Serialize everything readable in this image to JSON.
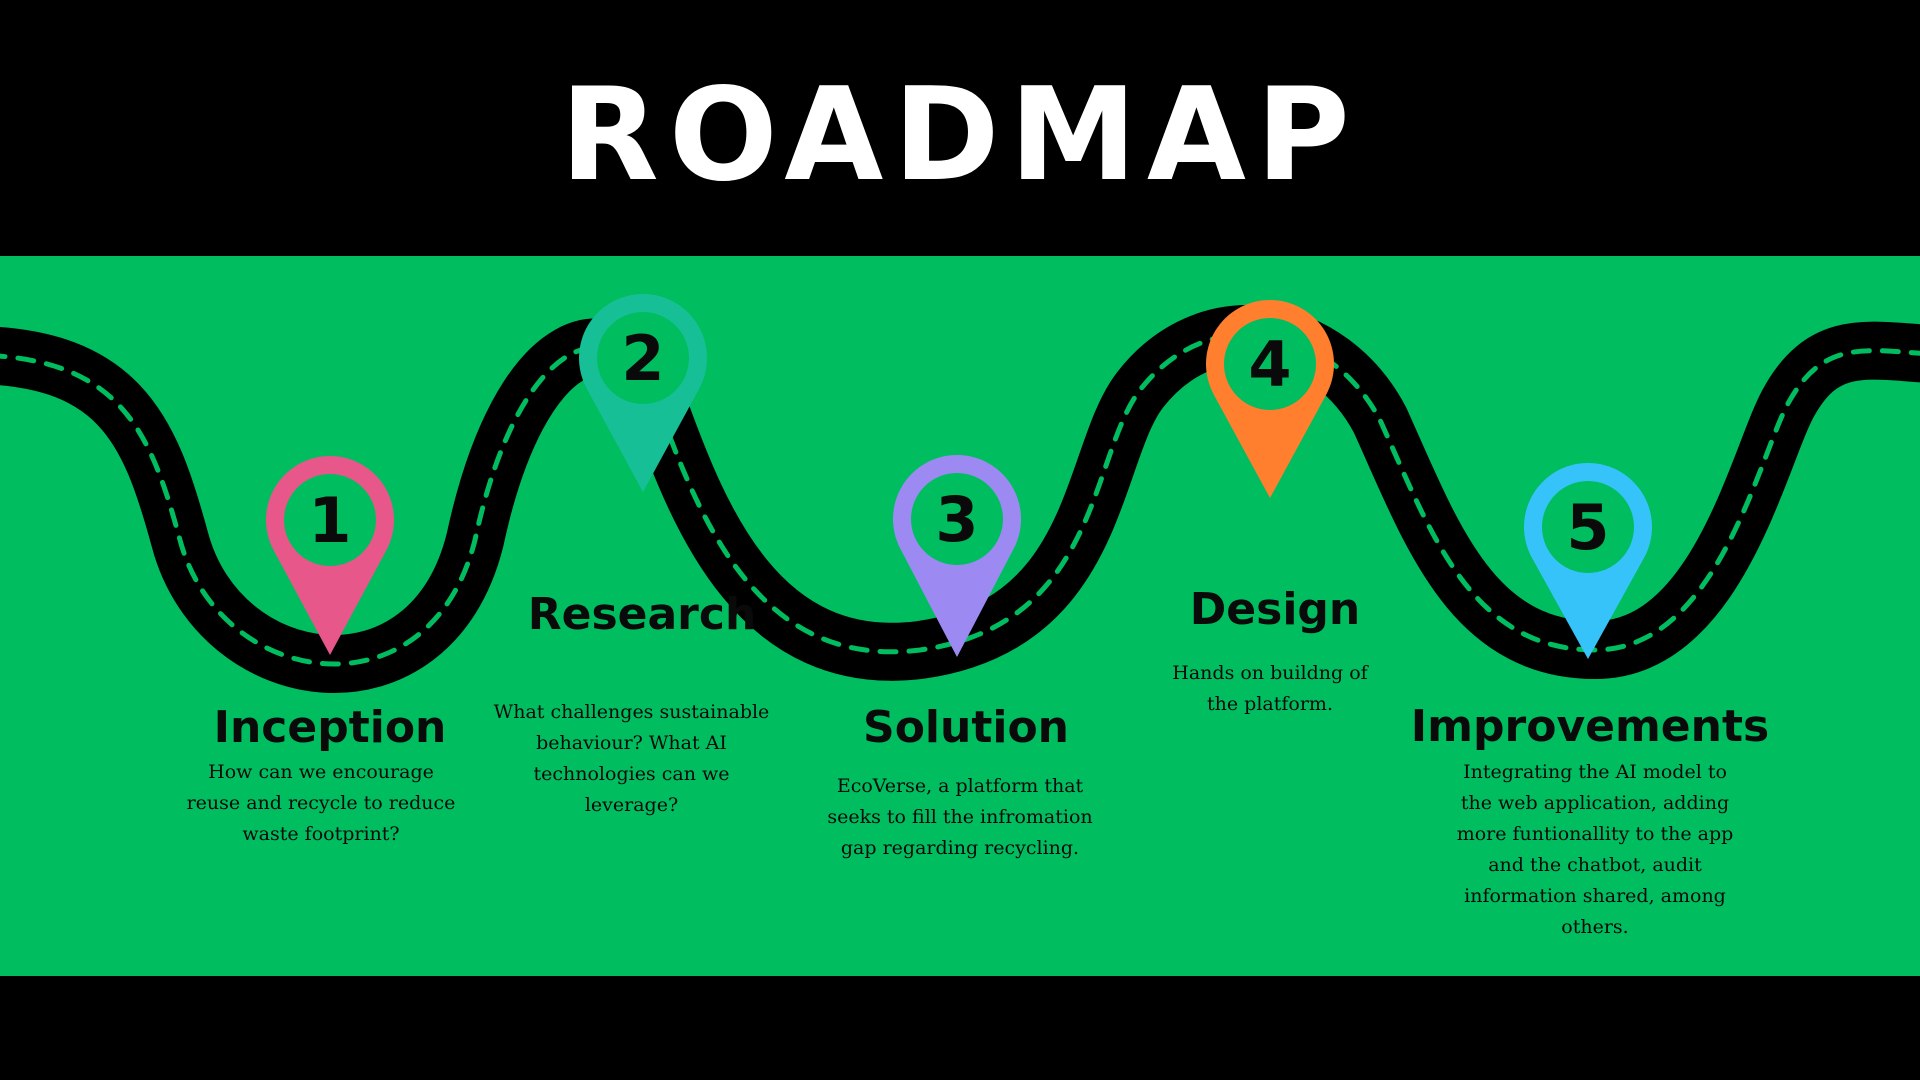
{
  "title": "ROADMAP",
  "colors": {
    "background": "#000000",
    "band": "#00BD5F",
    "road": "#000000",
    "road_dashes": "#00BD5F",
    "title_text": "#ffffff"
  },
  "steps": [
    {
      "number": "1",
      "title": "Inception",
      "description": "How can we encourage reuse and recycle to reduce waste footprint?",
      "pin_color": "#E8578A"
    },
    {
      "number": "2",
      "title": "Research",
      "description": "What challenges sustainable behaviour? What AI technologies can we leverage?",
      "pin_color": "#17BF96"
    },
    {
      "number": "3",
      "title": "Solution",
      "description": "EcoVerse, a platform that seeks to fill the infromation gap regarding recycling.",
      "pin_color": "#9C8AF2"
    },
    {
      "number": "4",
      "title": "Design",
      "description": "Hands on buildng of the platform.",
      "pin_color": "#FF7F2E"
    },
    {
      "number": "5",
      "title": "Improvements",
      "description": "Integrating the AI model to the web application, adding more funtionallity to the app and the chatbot, audit information shared, among others.",
      "pin_color": "#36C3FA"
    }
  ]
}
